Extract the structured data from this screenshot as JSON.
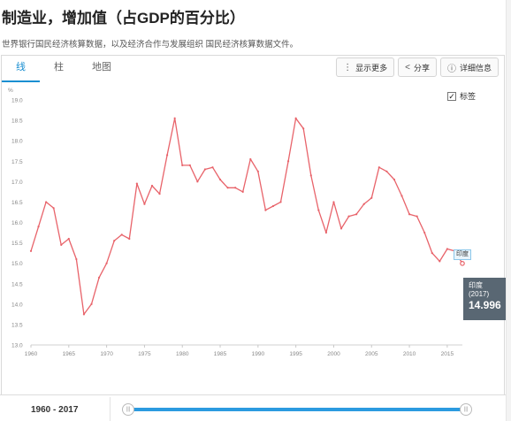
{
  "page": {
    "title": "制造业，增加值（占GDP的百分比）",
    "source": "世界银行国民经济核算数据，以及经济合作与发展组织 国民经济核算数据文件。"
  },
  "tabs": [
    {
      "label": "线",
      "active": true
    },
    {
      "label": "柱",
      "active": false
    },
    {
      "label": "地图",
      "active": false
    }
  ],
  "toolbar": {
    "more_icon": "⋮",
    "more_label": "显示更多",
    "share_icon": "<",
    "share_label": "分享",
    "info_icon": "ⓘ",
    "info_label": "详细信息"
  },
  "label_toggle": {
    "checked": true,
    "check_mark": "✓",
    "label": "标签"
  },
  "tooltip": {
    "name": "印度",
    "year": "(2017)",
    "value": "14.996"
  },
  "data_label": "印度",
  "range": {
    "label": "1960 - 2017",
    "handle_glyph": "|||"
  },
  "colors": {
    "line": "#e8636a",
    "accent": "#1a8fd1",
    "tooltip_bg": "#596773"
  },
  "chart_data": {
    "type": "line",
    "ylabel": "%",
    "ylim": [
      13.0,
      19.0
    ],
    "yticks": [
      13.0,
      13.5,
      14.0,
      14.5,
      15.0,
      15.5,
      16.0,
      16.5,
      17.0,
      17.5,
      18.0,
      18.5,
      19.0
    ],
    "xticks": [
      1960,
      1965,
      1970,
      1975,
      1980,
      1985,
      1990,
      1995,
      2000,
      2005,
      2010,
      2015
    ],
    "grid": false,
    "series": [
      {
        "name": "印度",
        "x": [
          1960,
          1961,
          1962,
          1963,
          1964,
          1965,
          1966,
          1967,
          1968,
          1969,
          1970,
          1971,
          1972,
          1973,
          1974,
          1975,
          1976,
          1977,
          1978,
          1979,
          1980,
          1981,
          1982,
          1983,
          1984,
          1985,
          1986,
          1987,
          1988,
          1989,
          1990,
          1991,
          1992,
          1993,
          1994,
          1995,
          1996,
          1997,
          1998,
          1999,
          2000,
          2001,
          2002,
          2003,
          2004,
          2005,
          2006,
          2007,
          2008,
          2009,
          2010,
          2011,
          2012,
          2013,
          2014,
          2015,
          2016,
          2017
        ],
        "values": [
          15.3,
          15.9,
          16.5,
          16.35,
          15.45,
          15.6,
          15.1,
          13.75,
          14.0,
          14.65,
          15.0,
          15.55,
          15.7,
          15.6,
          16.95,
          16.45,
          16.9,
          16.7,
          17.65,
          18.55,
          17.4,
          17.4,
          17.0,
          17.3,
          17.35,
          17.05,
          16.85,
          16.85,
          16.75,
          17.55,
          17.25,
          16.3,
          16.4,
          16.5,
          17.5,
          18.55,
          18.3,
          17.15,
          16.3,
          15.75,
          16.5,
          15.85,
          16.15,
          16.2,
          16.45,
          16.6,
          17.35,
          17.25,
          17.05,
          16.65,
          16.2,
          16.15,
          15.75,
          15.25,
          15.05,
          15.35,
          15.3,
          14.996
        ]
      }
    ]
  }
}
